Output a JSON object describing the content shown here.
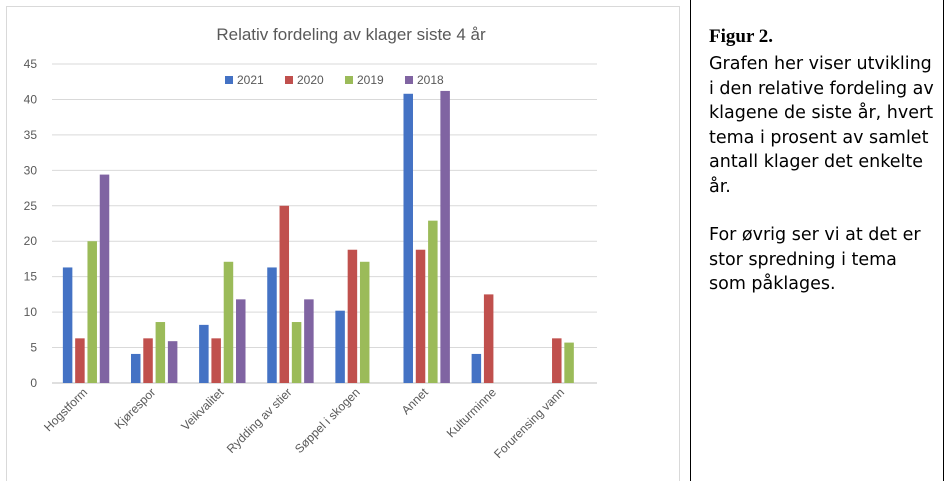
{
  "caption": {
    "title": "Figur 2.",
    "paragraph1": "Grafen her viser utvikling i den relative fordeling av klagene de siste år, hvert tema i prosent av samlet antall klager det enkelte år.",
    "paragraph2": "For øvrig ser vi at det er stor spredning i tema som påklages."
  },
  "chart_data": {
    "type": "bar",
    "title": "Relativ fordeling av klager siste 4 år",
    "xlabel": "",
    "ylabel": "",
    "ylim": [
      0,
      45
    ],
    "yticks": [
      0,
      5,
      10,
      15,
      20,
      25,
      30,
      35,
      40,
      45
    ],
    "grid": true,
    "legend_position": "top",
    "categories": [
      "Hogstform",
      "Kjørespor",
      "Veikvalitet",
      "Rydding av stier",
      "Søppel i skogen",
      "Annet",
      "Kulturminne",
      "Forurensing vann"
    ],
    "series": [
      {
        "name": "2021",
        "color": "#4472c4",
        "values": [
          16.3,
          4.1,
          8.2,
          16.3,
          10.2,
          40.8,
          4.1,
          0
        ]
      },
      {
        "name": "2020",
        "color": "#c0504d",
        "values": [
          6.3,
          6.3,
          6.3,
          25.0,
          18.8,
          18.8,
          12.5,
          6.3
        ]
      },
      {
        "name": "2019",
        "color": "#9bbb59",
        "values": [
          20.0,
          8.6,
          17.1,
          8.6,
          17.1,
          22.9,
          0,
          5.7
        ]
      },
      {
        "name": "2018",
        "color": "#8064a2",
        "values": [
          29.4,
          5.9,
          11.8,
          11.8,
          0,
          41.2,
          0,
          0
        ]
      }
    ]
  }
}
